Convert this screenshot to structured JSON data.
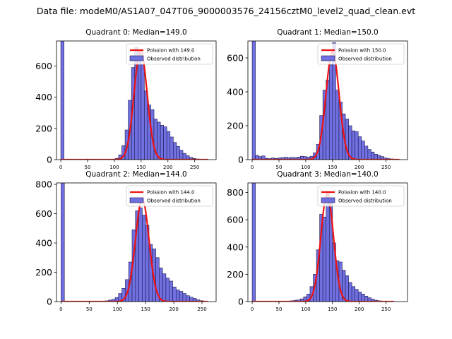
{
  "figure": {
    "title": "Data file: modeM0/AS1A07_047T06_9000003576_24156cztM0_level2_quad_clean.evt"
  },
  "colors": {
    "bar_fill": "#7070e0",
    "bar_edge": "#1a1a50",
    "poisson_line": "#ee1111"
  },
  "chart_data": [
    {
      "type": "bar",
      "title": "Quadrant 0: Median=149.0",
      "xlim": [
        -8,
        290
      ],
      "ylim": [
        0,
        760
      ],
      "xticks": [
        0,
        50,
        100,
        150,
        200,
        250
      ],
      "yticks": [
        0,
        200,
        400,
        600
      ],
      "bin_width": 6,
      "bins": [
        [
          0,
          770
        ],
        [
          96,
          3
        ],
        [
          102,
          8
        ],
        [
          108,
          30
        ],
        [
          114,
          90
        ],
        [
          120,
          190
        ],
        [
          126,
          380
        ],
        [
          132,
          590
        ],
        [
          138,
          720
        ],
        [
          144,
          700
        ],
        [
          150,
          610
        ],
        [
          156,
          440
        ],
        [
          162,
          350
        ],
        [
          168,
          320
        ],
        [
          174,
          260
        ],
        [
          180,
          240
        ],
        [
          186,
          220
        ],
        [
          192,
          210
        ],
        [
          198,
          180
        ],
        [
          204,
          145
        ],
        [
          210,
          110
        ],
        [
          216,
          85
        ],
        [
          222,
          60
        ],
        [
          228,
          40
        ],
        [
          234,
          25
        ],
        [
          240,
          14
        ],
        [
          246,
          8
        ],
        [
          252,
          4
        ]
      ],
      "poisson": {
        "label": "Poission with 149.0",
        "mean": 149.0,
        "peak": 700,
        "sigma": 12.2,
        "range": [
          0,
          275
        ]
      },
      "legend": {
        "poisson_label": "Poission with 149.0",
        "observed_label": "Observed distribution",
        "position": "upper right"
      }
    },
    {
      "type": "bar",
      "title": "Quadrant 1: Median=150.0",
      "xlim": [
        -8,
        290
      ],
      "ylim": [
        0,
        700
      ],
      "xticks": [
        0,
        50,
        100,
        150,
        200,
        250
      ],
      "yticks": [
        0,
        200,
        400,
        600
      ],
      "bin_width": 6,
      "bins": [
        [
          0,
          720
        ],
        [
          6,
          25
        ],
        [
          12,
          18
        ],
        [
          18,
          22
        ],
        [
          24,
          8
        ],
        [
          30,
          6
        ],
        [
          36,
          10
        ],
        [
          42,
          7
        ],
        [
          48,
          10
        ],
        [
          54,
          12
        ],
        [
          60,
          14
        ],
        [
          66,
          11
        ],
        [
          72,
          13
        ],
        [
          78,
          12
        ],
        [
          84,
          15
        ],
        [
          90,
          20
        ],
        [
          96,
          18
        ],
        [
          102,
          15
        ],
        [
          108,
          20
        ],
        [
          114,
          40
        ],
        [
          120,
          90
        ],
        [
          126,
          260
        ],
        [
          132,
          410
        ],
        [
          138,
          470
        ],
        [
          144,
          560
        ],
        [
          150,
          690
        ],
        [
          156,
          410
        ],
        [
          162,
          340
        ],
        [
          168,
          270
        ],
        [
          174,
          240
        ],
        [
          180,
          200
        ],
        [
          186,
          170
        ],
        [
          192,
          165
        ],
        [
          198,
          135
        ],
        [
          204,
          110
        ],
        [
          210,
          80
        ],
        [
          216,
          60
        ],
        [
          222,
          45
        ],
        [
          228,
          32
        ],
        [
          234,
          25
        ],
        [
          240,
          18
        ],
        [
          246,
          10
        ],
        [
          252,
          6
        ],
        [
          258,
          4
        ]
      ],
      "poisson": {
        "label": "Poission with 150.0",
        "mean": 150.0,
        "peak": 640,
        "sigma": 12.2,
        "range": [
          0,
          275
        ]
      },
      "legend": {
        "poisson_label": "Poission with 150.0",
        "observed_label": "Observed distribution",
        "position": "upper right"
      }
    },
    {
      "type": "bar",
      "title": "Quadrant 2: Median=144.0",
      "xlim": [
        -8,
        275
      ],
      "ylim": [
        0,
        810
      ],
      "xticks": [
        0,
        50,
        100,
        150,
        200,
        250
      ],
      "yticks": [
        0,
        200,
        400,
        600,
        800
      ],
      "bin_width": 6,
      "bins": [
        [
          0,
          820
        ],
        [
          78,
          5
        ],
        [
          84,
          10
        ],
        [
          90,
          15
        ],
        [
          96,
          28
        ],
        [
          102,
          55
        ],
        [
          108,
          90
        ],
        [
          114,
          150
        ],
        [
          120,
          270
        ],
        [
          126,
          490
        ],
        [
          132,
          620
        ],
        [
          138,
          640
        ],
        [
          144,
          590
        ],
        [
          150,
          520
        ],
        [
          156,
          390
        ],
        [
          162,
          360
        ],
        [
          168,
          300
        ],
        [
          174,
          230
        ],
        [
          180,
          190
        ],
        [
          186,
          160
        ],
        [
          192,
          140
        ],
        [
          198,
          100
        ],
        [
          204,
          80
        ],
        [
          210,
          70
        ],
        [
          216,
          55
        ],
        [
          222,
          40
        ],
        [
          228,
          30
        ],
        [
          234,
          22
        ],
        [
          240,
          12
        ],
        [
          246,
          6
        ]
      ],
      "poisson": {
        "label": "Poission with 144.0",
        "mean": 144.0,
        "peak": 700,
        "sigma": 12.0,
        "range": [
          0,
          260
        ]
      },
      "legend": {
        "poisson_label": "Poission with 144.0",
        "observed_label": "Observed distribution",
        "position": "upper right"
      }
    },
    {
      "type": "bar",
      "title": "Quadrant 3: Median=140.0",
      "xlim": [
        -8,
        290
      ],
      "ylim": [
        0,
        870
      ],
      "xticks": [
        0,
        50,
        100,
        150,
        200,
        250
      ],
      "yticks": [
        0,
        200,
        400,
        600,
        800
      ],
      "bin_width": 6,
      "bins": [
        [
          0,
          880
        ],
        [
          66,
          4
        ],
        [
          72,
          6
        ],
        [
          78,
          10
        ],
        [
          84,
          12
        ],
        [
          90,
          20
        ],
        [
          96,
          35
        ],
        [
          102,
          55
        ],
        [
          108,
          110
        ],
        [
          114,
          200
        ],
        [
          120,
          380
        ],
        [
          126,
          640
        ],
        [
          132,
          620
        ],
        [
          138,
          810
        ],
        [
          144,
          720
        ],
        [
          150,
          430
        ],
        [
          156,
          300
        ],
        [
          162,
          290
        ],
        [
          168,
          230
        ],
        [
          174,
          190
        ],
        [
          180,
          140
        ],
        [
          186,
          110
        ],
        [
          192,
          90
        ],
        [
          198,
          70
        ],
        [
          204,
          55
        ],
        [
          210,
          40
        ],
        [
          216,
          28
        ],
        [
          222,
          18
        ],
        [
          228,
          10
        ],
        [
          234,
          6
        ]
      ],
      "poisson": {
        "label": "Poission with 140.0",
        "mean": 140.0,
        "peak": 790,
        "sigma": 11.8,
        "range": [
          0,
          265
        ]
      },
      "legend": {
        "poisson_label": "Poission with 140.0",
        "observed_label": "Observed distribution",
        "position": "upper right"
      }
    }
  ]
}
